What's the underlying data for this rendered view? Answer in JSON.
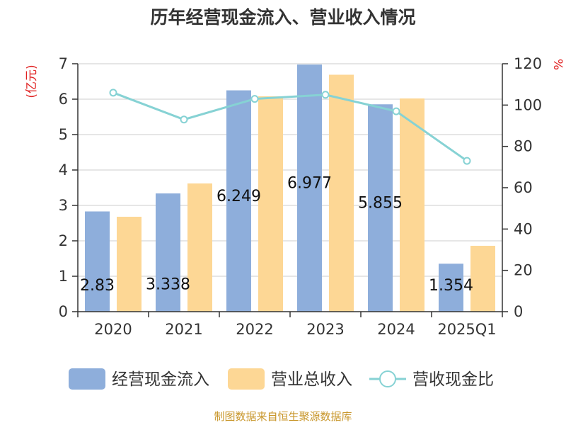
{
  "chart_data": {
    "type": "bar",
    "title": "历年经营现金流入、营业收入情况",
    "categories": [
      "2020",
      "2021",
      "2022",
      "2023",
      "2024",
      "2025Q1"
    ],
    "y_left": {
      "unit": "(亿元)",
      "ylim": [
        0,
        7
      ],
      "ticks": [
        0,
        1,
        2,
        3,
        4,
        5,
        6,
        7
      ]
    },
    "y_right": {
      "unit": "%",
      "ylim": [
        0,
        120
      ],
      "ticks": [
        0,
        20,
        40,
        60,
        80,
        100,
        120
      ]
    },
    "series": [
      {
        "name": "经营现金流入",
        "type": "bar",
        "axis": "left",
        "color": "#8eaedb",
        "values": [
          2.83,
          3.338,
          6.249,
          6.977,
          5.855,
          1.354
        ]
      },
      {
        "name": "营业总收入",
        "type": "bar",
        "axis": "left",
        "color": "#fdd795",
        "values": [
          2.68,
          3.62,
          6.08,
          6.69,
          6.02,
          1.86
        ]
      },
      {
        "name": "营收现金比",
        "type": "line",
        "axis": "right",
        "color": "#86d2d4",
        "values": [
          106,
          93,
          103,
          105,
          97,
          73
        ]
      }
    ],
    "data_labels": [
      "2.83",
      "3.338",
      "6.249",
      "6.977",
      "5.855",
      "1.354"
    ],
    "grid": true,
    "legend_position": "bottom",
    "source": "制图数据来自恒生聚源数据库"
  }
}
